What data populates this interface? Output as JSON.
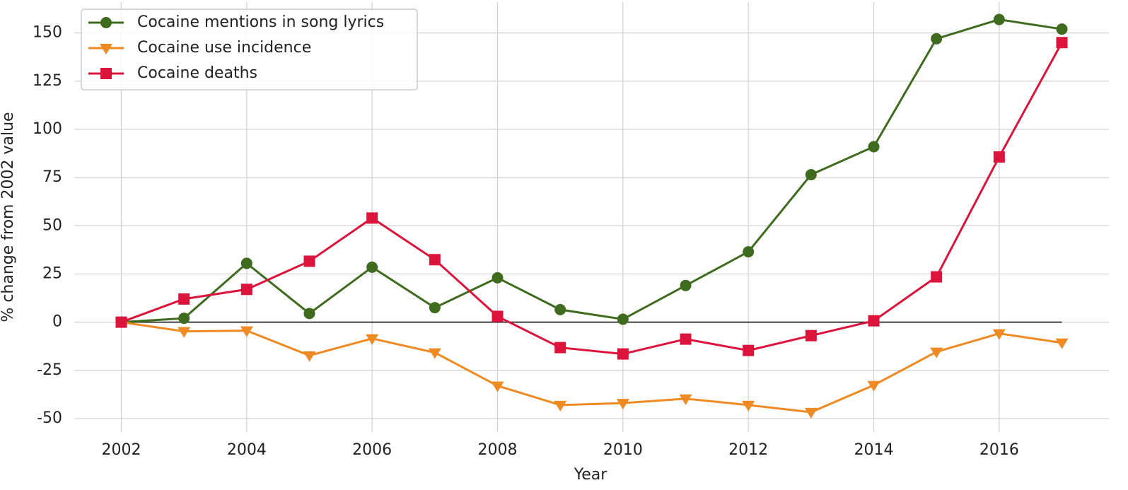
{
  "chart_data": {
    "type": "line",
    "x_label": "Year",
    "y_label": "% change from 2002 value",
    "x": [
      2002,
      2003,
      2004,
      2005,
      2006,
      2007,
      2008,
      2009,
      2010,
      2011,
      2012,
      2013,
      2014,
      2015,
      2016,
      2017
    ],
    "series": [
      {
        "name": "Cocaine mentions in song lyrics",
        "color": "#3f6b1f",
        "marker": "circle",
        "values": [
          0,
          2,
          30.5,
          4.5,
          28.5,
          7.5,
          23,
          6.5,
          1.5,
          19,
          36.5,
          76.5,
          91,
          147,
          157,
          152
        ]
      },
      {
        "name": "Cocaine use incidence",
        "color": "#ef8a22",
        "marker": "triangle-down",
        "values": [
          0,
          -4.8,
          -4.4,
          -17.3,
          -8.5,
          -15.8,
          -33,
          -43,
          -42,
          -39.7,
          -43,
          -46.7,
          -32.7,
          -15.4,
          -5.9,
          -10.7
        ]
      },
      {
        "name": "Cocaine deaths",
        "color": "#dc143c",
        "marker": "square",
        "values": [
          0,
          12,
          17,
          31.6,
          54,
          32.4,
          3,
          -13.2,
          -16.5,
          -8.8,
          -14.7,
          -7,
          0.7,
          23.5,
          85.7,
          145
        ]
      }
    ],
    "xlim": [
      2001.25,
      2017.75
    ],
    "xticks": [
      2002,
      2004,
      2006,
      2008,
      2010,
      2012,
      2014,
      2016
    ],
    "ylim": [
      -57,
      166
    ],
    "yticks": [
      -50,
      -25,
      0,
      25,
      50,
      75,
      100,
      125,
      150
    ],
    "grid": true,
    "legend": "upper-left"
  }
}
